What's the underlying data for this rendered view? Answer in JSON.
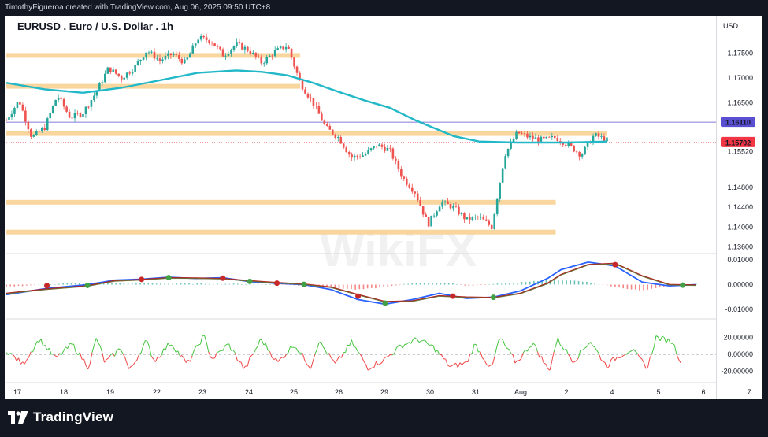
{
  "attribution": "TimothyFigueroa created with TradingView.com, Aug 06, 2025 09:50 UTC+8",
  "title": "EURUSD . Euro / U.S. Dollar . 1h",
  "currency": "USD",
  "brand": "TradingView",
  "watermark": "WikiFX",
  "colors": {
    "bull": "#26a69a",
    "bear": "#ef5350",
    "ma": "#22b8c8",
    "zone": "#f9cf8e",
    "current_price": "#f23645",
    "ref_level": "#5b4fd1",
    "macd_line": "#2962ff",
    "signal_line": "#b71c1c",
    "cross_up": "#43a047",
    "cross_down": "#c62828",
    "osc_up": "#43c43d",
    "osc_down": "#ef4444"
  },
  "chart_data": [
    {
      "type": "candlestick",
      "symbol": "EURUSD",
      "interval": "1h",
      "x_ticks": [
        "17",
        "18",
        "19",
        "22",
        "23",
        "24",
        "25",
        "26",
        "29",
        "30",
        "31",
        "Aug",
        "2",
        "4",
        "5",
        "6",
        "7"
      ],
      "y_ticks": [
        "1.17500",
        "1.17000",
        "1.16500",
        "1.15520",
        "1.14800",
        "1.14400",
        "1.14000",
        "1.13600"
      ],
      "ylim": [
        1.135,
        1.179
      ],
      "price_labels": [
        {
          "value": 1.1611,
          "text": "1.16110"
        },
        {
          "value": 1.15702,
          "text": "1.15702"
        }
      ],
      "anchors": [
        [
          0,
          1.1615
        ],
        [
          1,
          1.1655
        ],
        [
          2,
          1.158
        ],
        [
          3,
          1.16
        ],
        [
          4,
          1.1665
        ],
        [
          5,
          1.162
        ],
        [
          6,
          1.163
        ],
        [
          7,
          1.167
        ],
        [
          8,
          1.172
        ],
        [
          9,
          1.17
        ],
        [
          10,
          1.172
        ],
        [
          11,
          1.1755
        ],
        [
          12,
          1.1735
        ],
        [
          13,
          1.1748
        ],
        [
          14,
          1.173
        ],
        [
          15,
          1.178
        ],
        [
          16,
          1.1775
        ],
        [
          17,
          1.1745
        ],
        [
          18,
          1.1768
        ],
        [
          19,
          1.1755
        ],
        [
          20,
          1.173
        ],
        [
          21,
          1.1752
        ],
        [
          22,
          1.1765
        ],
        [
          23,
          1.169
        ],
        [
          24,
          1.165
        ],
        [
          25,
          1.16
        ],
        [
          26,
          1.158
        ],
        [
          27,
          1.154
        ],
        [
          28,
          1.1545
        ],
        [
          29,
          1.1565
        ],
        [
          30,
          1.1555
        ],
        [
          31,
          1.15
        ],
        [
          32,
          1.147
        ],
        [
          33,
          1.1405
        ],
        [
          34,
          1.145
        ],
        [
          35,
          1.144
        ],
        [
          36,
          1.1415
        ],
        [
          37,
          1.142
        ],
        [
          38,
          1.14
        ],
        [
          39,
          1.1545
        ],
        [
          40,
          1.159
        ],
        [
          41,
          1.158
        ],
        [
          42,
          1.1575
        ],
        [
          43,
          1.158
        ],
        [
          44,
          1.1565
        ],
        [
          45,
          1.1545
        ],
        [
          46,
          1.1585
        ],
        [
          47,
          1.1575
        ]
      ],
      "moving_average": [
        [
          0,
          1.169
        ],
        [
          3,
          1.1677
        ],
        [
          6,
          1.167
        ],
        [
          9,
          1.168
        ],
        [
          12,
          1.1695
        ],
        [
          15,
          1.171
        ],
        [
          18,
          1.1715
        ],
        [
          20,
          1.1712
        ],
        [
          22,
          1.1705
        ],
        [
          24,
          1.169
        ],
        [
          26,
          1.1672
        ],
        [
          28,
          1.1655
        ],
        [
          30,
          1.164
        ],
        [
          32,
          1.1615
        ],
        [
          35,
          1.1583
        ],
        [
          37,
          1.1572
        ],
        [
          40,
          1.157
        ],
        [
          44,
          1.157
        ],
        [
          47,
          1.1572
        ]
      ],
      "horizontal_levels": [
        1.1611,
        1.15702
      ],
      "zones": [
        {
          "value": 1.1745,
          "x_end": 23
        },
        {
          "value": 1.1683,
          "x_end": 23
        },
        {
          "value": 1.1588,
          "x_end": 47
        },
        {
          "value": 1.145,
          "x_end": 43
        },
        {
          "value": 1.139,
          "x_end": 43
        }
      ]
    },
    {
      "type": "line",
      "name": "MACD",
      "y_ticks": [
        "0.01000",
        "0.00000",
        "-0.01000"
      ],
      "ylim": [
        -0.0115,
        0.0115
      ],
      "series": [
        {
          "values": [
            [
              0,
              -0.004
            ],
            [
              3,
              -0.0015
            ],
            [
              6,
              0.0
            ],
            [
              8,
              0.0018
            ],
            [
              10,
              0.0022
            ],
            [
              12,
              0.003
            ],
            [
              14,
              0.0025
            ],
            [
              16,
              0.0028
            ],
            [
              18,
              0.0012
            ],
            [
              20,
              0.0005
            ],
            [
              22,
              0.0
            ],
            [
              24,
              -0.002
            ],
            [
              26,
              -0.006
            ],
            [
              28,
              -0.0078
            ],
            [
              30,
              -0.006
            ],
            [
              32,
              -0.0035
            ],
            [
              34,
              -0.0055
            ],
            [
              36,
              -0.005
            ],
            [
              38,
              -0.0025
            ],
            [
              40,
              0.0025
            ],
            [
              41,
              0.006
            ],
            [
              43,
              0.009
            ],
            [
              45,
              0.0075
            ],
            [
              47,
              0.001
            ],
            [
              49,
              -0.0005
            ],
            [
              51,
              0.0
            ]
          ]
        },
        {
          "values": [
            [
              0,
              -0.0035
            ],
            [
              3,
              -0.0018
            ],
            [
              6,
              -0.0005
            ],
            [
              8,
              0.0015
            ],
            [
              10,
              0.002
            ],
            [
              12,
              0.0027
            ],
            [
              14,
              0.0026
            ],
            [
              16,
              0.0024
            ],
            [
              18,
              0.0015
            ],
            [
              20,
              0.0008
            ],
            [
              22,
              0.0002
            ],
            [
              24,
              -0.001
            ],
            [
              26,
              -0.004
            ],
            [
              28,
              -0.0068
            ],
            [
              30,
              -0.0066
            ],
            [
              32,
              -0.0045
            ],
            [
              34,
              -0.005
            ],
            [
              36,
              -0.0052
            ],
            [
              38,
              -0.0035
            ],
            [
              40,
              0.0005
            ],
            [
              41,
              0.004
            ],
            [
              43,
              0.008
            ],
            [
              45,
              0.0085
            ],
            [
              47,
              0.0035
            ],
            [
              49,
              0.0
            ],
            [
              51,
              -0.0002
            ]
          ]
        }
      ],
      "histogram": [
        [
          0,
          -0.0008
        ],
        [
          4,
          0.0004
        ],
        [
          8,
          0.0006
        ],
        [
          12,
          0.0004
        ],
        [
          16,
          0.0003
        ],
        [
          20,
          0.0002
        ],
        [
          24,
          -0.0012
        ],
        [
          26,
          -0.002
        ],
        [
          28,
          -0.001
        ],
        [
          30,
          0.0006
        ],
        [
          33,
          0.0006
        ],
        [
          34,
          -0.0005
        ],
        [
          36,
          0.0002
        ],
        [
          38,
          0.001
        ],
        [
          40,
          0.0018
        ],
        [
          41,
          0.002
        ],
        [
          43,
          0.001
        ],
        [
          45,
          -0.001
        ],
        [
          47,
          -0.0024
        ],
        [
          49,
          -0.0006
        ],
        [
          51,
          0.0002
        ]
      ],
      "crosses": [
        [
          3,
          -0.0004,
          "down"
        ],
        [
          6,
          -0.0003,
          "up"
        ],
        [
          10,
          0.0021,
          "down"
        ],
        [
          12,
          0.0028,
          "up"
        ],
        [
          16,
          0.0026,
          "down"
        ],
        [
          18,
          0.0013,
          "up"
        ],
        [
          20,
          0.0006,
          "down"
        ],
        [
          22,
          0.0001,
          "up"
        ],
        [
          26,
          -0.0046,
          "down"
        ],
        [
          28,
          -0.0074,
          "up"
        ],
        [
          33,
          -0.0046,
          "down"
        ],
        [
          36,
          -0.0051,
          "up"
        ],
        [
          45,
          0.008,
          "down"
        ],
        [
          50,
          -0.0002,
          "up"
        ]
      ]
    },
    {
      "type": "line",
      "name": "Oscillator",
      "y_ticks": [
        "20.00000",
        "0.00000",
        "-20.00000"
      ],
      "ylim": [
        -26,
        26
      ],
      "values": [
        [
          0,
          5
        ],
        [
          2,
          -12
        ],
        [
          4,
          18
        ],
        [
          6,
          -5
        ],
        [
          8,
          12
        ],
        [
          10,
          -15
        ],
        [
          11,
          20
        ],
        [
          12,
          -10
        ],
        [
          14,
          8
        ],
        [
          15,
          -20
        ],
        [
          17,
          16
        ],
        [
          18,
          -8
        ],
        [
          20,
          14
        ],
        [
          22,
          -12
        ],
        [
          24,
          22
        ],
        [
          25,
          -6
        ],
        [
          27,
          12
        ],
        [
          29,
          -18
        ],
        [
          31,
          18
        ],
        [
          33,
          -10
        ],
        [
          35,
          12
        ],
        [
          37,
          -15
        ],
        [
          38,
          16
        ],
        [
          40,
          -12
        ],
        [
          42,
          14
        ],
        [
          44,
          -16
        ],
        [
          46,
          -6
        ],
        [
          48,
          10
        ],
        [
          50,
          18
        ],
        [
          52,
          8
        ],
        [
          54,
          -15
        ],
        [
          56,
          -10
        ],
        [
          57,
          12
        ],
        [
          59,
          -18
        ],
        [
          60,
          20
        ],
        [
          62,
          -10
        ],
        [
          64,
          14
        ],
        [
          66,
          -20
        ],
        [
          67,
          18
        ],
        [
          69,
          -8
        ],
        [
          71,
          16
        ],
        [
          73,
          -14
        ],
        [
          74,
          -5
        ],
        [
          76,
          6
        ],
        [
          78,
          -16
        ],
        [
          79,
          20
        ],
        [
          81,
          15
        ],
        [
          82,
          -8
        ]
      ]
    }
  ]
}
